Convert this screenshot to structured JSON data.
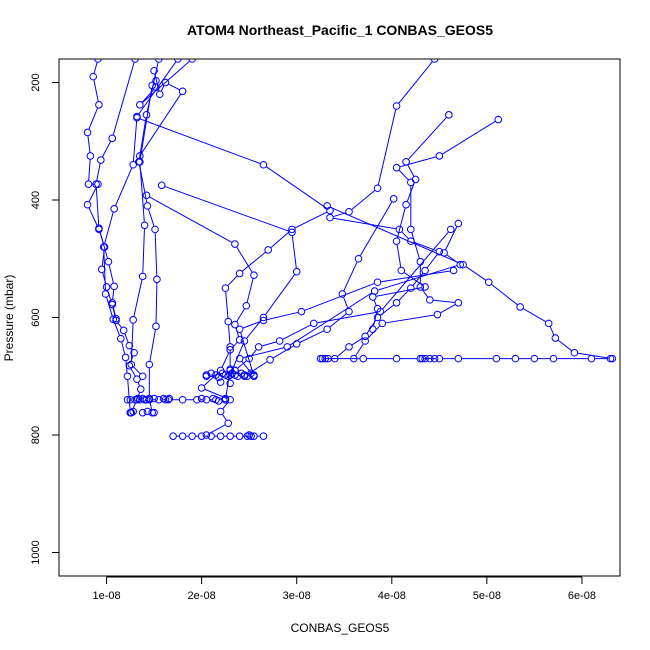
{
  "chart_data": {
    "type": "line",
    "title": "ATOM4 Northeast_Pacific_1 CONBAS_GEOS5",
    "xlabel": "CONBAS_GEOS5",
    "ylabel": "Pressure (mbar)",
    "xlim": [
      5e-09,
      6.4e-08
    ],
    "ylim": [
      1040,
      160
    ],
    "y_reversed": true,
    "grid": false,
    "x_ticks": [
      1e-08,
      2e-08,
      3e-08,
      4e-08,
      5e-08,
      6e-08
    ],
    "x_tick_labels": [
      "1e-08",
      "2e-08",
      "3e-08",
      "4e-08",
      "5e-08",
      "6e-08"
    ],
    "y_ticks": [
      200,
      400,
      600,
      800,
      1000
    ],
    "y_tick_labels": [
      "200",
      "400",
      "600",
      "800",
      "1000"
    ],
    "colors": {
      "series": "#0000ff",
      "axis": "#000000",
      "background": "#ffffff"
    },
    "marker": "open-circle",
    "series": [
      {
        "points": [
          [
            9.1e-09,
            160
          ],
          [
            8.6e-09,
            190
          ],
          [
            9.2e-09,
            238
          ],
          [
            8e-09,
            285
          ],
          [
            8.3e-09,
            325
          ],
          [
            8.1e-09,
            373
          ],
          [
            9.1e-09,
            373
          ],
          [
            8e-09,
            408
          ],
          [
            9.2e-09,
            450
          ],
          [
            9.8e-09,
            480
          ],
          [
            9.5e-09,
            518
          ],
          [
            1e-08,
            548
          ],
          [
            1.06e-08,
            578
          ],
          [
            1.1e-08,
            605
          ],
          [
            1.18e-08,
            622
          ],
          [
            1.24e-08,
            648
          ],
          [
            1.29e-08,
            660
          ],
          [
            1.24e-08,
            682
          ],
          [
            1.32e-08,
            705
          ],
          [
            1.36e-08,
            722
          ],
          [
            1.32e-08,
            740
          ],
          [
            1.26e-08,
            762
          ]
        ]
      },
      {
        "points": [
          [
            1.55e-08,
            160
          ],
          [
            1.42e-08,
            255
          ],
          [
            1.34e-08,
            335
          ],
          [
            1.43e-08,
            410
          ],
          [
            1.51e-08,
            450
          ],
          [
            1.53e-08,
            535
          ],
          [
            1.52e-08,
            615
          ],
          [
            1.45e-08,
            680
          ],
          [
            1.45e-08,
            738
          ],
          [
            1.48e-08,
            762
          ]
        ]
      },
      {
        "points": [
          [
            1.48e-08,
            205
          ],
          [
            1.35e-08,
            335
          ],
          [
            1.4e-08,
            443
          ],
          [
            1.38e-08,
            530
          ],
          [
            1.28e-08,
            604
          ],
          [
            1.26e-08,
            680
          ],
          [
            1.38e-08,
            700
          ]
        ]
      },
      {
        "points": [
          [
            1.75e-08,
            160
          ],
          [
            1.32e-08,
            258
          ],
          [
            1.28e-08,
            340
          ],
          [
            1.08e-08,
            415
          ],
          [
            9.7e-09,
            480
          ],
          [
            9.9e-09,
            560
          ],
          [
            1.07e-08,
            603
          ],
          [
            1.15e-08,
            636
          ],
          [
            1.2e-08,
            668
          ],
          [
            1.22e-08,
            700
          ],
          [
            1.25e-08,
            762
          ]
        ]
      },
      {
        "points": [
          [
            1.3e-08,
            160
          ],
          [
            1.06e-08,
            295
          ],
          [
            9.4e-09,
            332
          ],
          [
            8.9e-09,
            373
          ],
          [
            9.2e-09,
            448
          ],
          [
            1.02e-08,
            505
          ],
          [
            1.08e-08,
            547
          ],
          [
            1.06e-08,
            575
          ],
          [
            1.1e-08,
            602
          ]
        ]
      },
      {
        "points": [
          [
            1.9e-08,
            160
          ],
          [
            1.35e-08,
            238
          ],
          [
            1.52e-08,
            208
          ],
          [
            1.52e-08,
            197
          ]
        ]
      },
      {
        "points": [
          [
            1.5e-08,
            180
          ],
          [
            1.56e-08,
            220
          ],
          [
            1.62e-08,
            200
          ],
          [
            1.8e-08,
            215
          ],
          [
            1.35e-08,
            325
          ]
        ]
      },
      {
        "points": [
          [
            1.32e-08,
            260
          ],
          [
            2.65e-08,
            340
          ],
          [
            3.35e-08,
            418
          ],
          [
            2.95e-08,
            450
          ],
          [
            2.7e-08,
            485
          ],
          [
            2.4e-08,
            525
          ],
          [
            2.25e-08,
            550
          ],
          [
            2.28e-08,
            607
          ],
          [
            2.3e-08,
            650
          ],
          [
            2.3e-08,
            690
          ],
          [
            2.25e-08,
            740
          ]
        ]
      },
      {
        "points": [
          [
            1.58e-08,
            375
          ],
          [
            2.95e-08,
            455
          ],
          [
            3e-08,
            522
          ],
          [
            2.65e-08,
            600
          ],
          [
            2.45e-08,
            640
          ],
          [
            2.3e-08,
            698
          ]
        ]
      },
      {
        "points": [
          [
            1.42e-08,
            392
          ],
          [
            2.35e-08,
            475
          ],
          [
            2.55e-08,
            528
          ],
          [
            2.47e-08,
            580
          ],
          [
            2.35e-08,
            612
          ],
          [
            2.4e-08,
            638
          ],
          [
            2.3e-08,
            655
          ],
          [
            2.2e-08,
            690
          ],
          [
            2e-08,
            720
          ],
          [
            2.3e-08,
            740
          ],
          [
            2.2e-08,
            760
          ],
          [
            2.28e-08,
            780
          ],
          [
            2.05e-08,
            800
          ]
        ]
      },
      {
        "points": [
          [
            4.45e-08,
            160
          ],
          [
            4.05e-08,
            240
          ],
          [
            3.85e-08,
            380
          ],
          [
            3.55e-08,
            420
          ],
          [
            3.35e-08,
            430
          ],
          [
            4.08e-08,
            450
          ],
          [
            4.2e-08,
            470
          ],
          [
            4.5e-08,
            488
          ],
          [
            4.35e-08,
            520
          ],
          [
            4.2e-08,
            550
          ],
          [
            4.05e-08,
            575
          ],
          [
            3.85e-08,
            600
          ],
          [
            3.72e-08,
            632
          ],
          [
            3.55e-08,
            650
          ],
          [
            3.4e-08,
            670
          ]
        ]
      },
      {
        "points": [
          [
            4.6e-08,
            255
          ],
          [
            4.15e-08,
            335
          ],
          [
            4.25e-08,
            365
          ],
          [
            4.15e-08,
            408
          ],
          [
            4.05e-08,
            470
          ],
          [
            4.1e-08,
            520
          ],
          [
            4.35e-08,
            548
          ],
          [
            3.8e-08,
            565
          ],
          [
            3.85e-08,
            585
          ],
          [
            3.8e-08,
            620
          ]
        ]
      },
      {
        "points": [
          [
            5.12e-08,
            263
          ],
          [
            4.5e-08,
            325
          ],
          [
            4.05e-08,
            345
          ],
          [
            4.2e-08,
            370
          ],
          [
            4.2e-08,
            450
          ],
          [
            4.3e-08,
            505
          ],
          [
            4.3e-08,
            548
          ],
          [
            4.4e-08,
            570
          ],
          [
            4.7e-08,
            575
          ],
          [
            4.48e-08,
            595
          ],
          [
            3.9e-08,
            610
          ],
          [
            3.72e-08,
            640
          ],
          [
            3.6e-08,
            670
          ]
        ]
      },
      {
        "points": [
          [
            3.32e-08,
            410
          ],
          [
            4.75e-08,
            510
          ],
          [
            5.02e-08,
            540
          ],
          [
            5.35e-08,
            582
          ],
          [
            5.65e-08,
            610
          ],
          [
            5.72e-08,
            635
          ],
          [
            5.92e-08,
            660
          ],
          [
            6.32e-08,
            670
          ]
        ]
      },
      {
        "points": [
          [
            4.02e-08,
            398
          ],
          [
            3.65e-08,
            500
          ],
          [
            3.48e-08,
            560
          ],
          [
            3.55e-08,
            590
          ],
          [
            3.32e-08,
            620
          ],
          [
            3e-08,
            645
          ],
          [
            2.72e-08,
            672
          ],
          [
            2.45e-08,
            700
          ]
        ]
      },
      {
        "points": [
          [
            4.62e-08,
            450
          ],
          [
            3.88e-08,
            590
          ],
          [
            3.18e-08,
            610
          ],
          [
            2.82e-08,
            640
          ],
          [
            2.6e-08,
            650
          ],
          [
            2.5e-08,
            670
          ],
          [
            2.35e-08,
            690
          ]
        ]
      },
      {
        "points": [
          [
            4.65e-08,
            520
          ],
          [
            3.85e-08,
            540
          ],
          [
            3.05e-08,
            590
          ],
          [
            2.65e-08,
            605
          ],
          [
            2.4e-08,
            620
          ],
          [
            2.55e-08,
            700
          ]
        ]
      },
      {
        "points": [
          [
            4.7e-08,
            440
          ],
          [
            4.55e-08,
            490
          ],
          [
            4.72e-08,
            510
          ],
          [
            3.82e-08,
            555
          ],
          [
            2.9e-08,
            650
          ],
          [
            2.4e-08,
            670
          ],
          [
            2.55e-08,
            700
          ]
        ]
      },
      {
        "points": [
          [
            3.25e-08,
            670
          ],
          [
            3.7e-08,
            670
          ],
          [
            4.05e-08,
            670
          ],
          [
            4.3e-08,
            670
          ],
          [
            4.5e-08,
            670
          ],
          [
            4.7e-08,
            670
          ],
          [
            5.1e-08,
            670
          ],
          [
            5.3e-08,
            670
          ],
          [
            5.5e-08,
            670
          ],
          [
            5.7e-08,
            670
          ],
          [
            6.1e-08,
            670
          ],
          [
            6.3e-08,
            670
          ]
        ]
      },
      {
        "points": [
          [
            2.05e-08,
            698
          ],
          [
            2.15e-08,
            698
          ],
          [
            2.25e-08,
            698
          ],
          [
            2.35e-08,
            698
          ],
          [
            2.45e-08,
            698
          ],
          [
            2.55e-08,
            698
          ]
        ]
      },
      {
        "points": [
          [
            1.25e-08,
            740
          ],
          [
            1.3e-08,
            740
          ],
          [
            1.35e-08,
            740
          ],
          [
            1.4e-08,
            740
          ],
          [
            1.45e-08,
            740
          ],
          [
            1.55e-08,
            740
          ],
          [
            1.65e-08,
            740
          ],
          [
            1.8e-08,
            740
          ],
          [
            1.95e-08,
            740
          ],
          [
            2.05e-08,
            740
          ],
          [
            2.15e-08,
            740
          ],
          [
            2.25e-08,
            740
          ]
        ]
      },
      {
        "points": [
          [
            1.7e-08,
            802
          ],
          [
            1.8e-08,
            802
          ],
          [
            1.9e-08,
            802
          ],
          [
            2e-08,
            802
          ],
          [
            2.1e-08,
            802
          ],
          [
            2.2e-08,
            802
          ],
          [
            2.3e-08,
            802
          ],
          [
            2.4e-08,
            802
          ],
          [
            2.55e-08,
            802
          ],
          [
            2.65e-08,
            802
          ]
        ]
      }
    ],
    "extra_points": [
      [
        1.25e-08,
        762
      ],
      [
        1.28e-08,
        760
      ],
      [
        1.38e-08,
        762
      ],
      [
        1.43e-08,
        760
      ],
      [
        1.5e-08,
        762
      ],
      [
        1.22e-08,
        740
      ],
      [
        1.33e-08,
        738
      ],
      [
        1.38e-08,
        738
      ],
      [
        1.42e-08,
        740
      ],
      [
        1.5e-08,
        738
      ],
      [
        1.6e-08,
        738
      ],
      [
        1.62e-08,
        740
      ],
      [
        1.66e-08,
        738
      ],
      [
        2e-08,
        738
      ],
      [
        2.12e-08,
        738
      ],
      [
        2.18e-08,
        742
      ],
      [
        2.25e-08,
        738
      ],
      [
        2.05e-08,
        700
      ],
      [
        2.1e-08,
        695
      ],
      [
        2.18e-08,
        702
      ],
      [
        2.22e-08,
        695
      ],
      [
        2.28e-08,
        700
      ],
      [
        2.32e-08,
        695
      ],
      [
        2.38e-08,
        700
      ],
      [
        2.42e-08,
        695
      ],
      [
        2.48e-08,
        700
      ],
      [
        2.52e-08,
        695
      ],
      [
        2.3e-08,
        688
      ],
      [
        2.35e-08,
        690
      ],
      [
        2.2e-08,
        710
      ],
      [
        2.3e-08,
        712
      ],
      [
        2.48e-08,
        802
      ],
      [
        2.5e-08,
        800
      ],
      [
        2.52e-08,
        802
      ],
      [
        3.27e-08,
        670
      ],
      [
        3.3e-08,
        670
      ],
      [
        3.33e-08,
        670
      ],
      [
        4.32e-08,
        670
      ],
      [
        4.35e-08,
        670
      ],
      [
        4.4e-08,
        670
      ],
      [
        4.45e-08,
        670
      ]
    ]
  }
}
